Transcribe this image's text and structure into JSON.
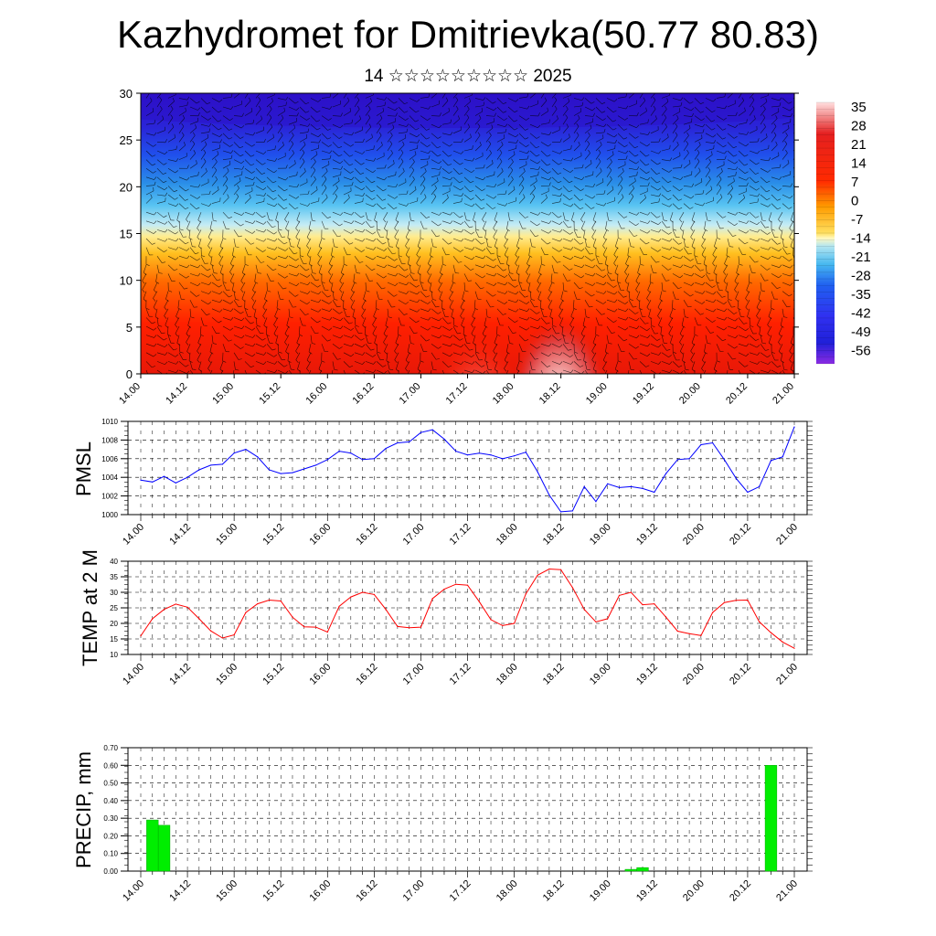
{
  "header": {
    "title": "Kazhydromet for Dmitrievka(50.77 80.83)",
    "subtitle": "14 ☆☆☆☆☆☆☆☆☆ 2025"
  },
  "x_tick_labels": [
    "14.00",
    "14.12",
    "15.00",
    "15.12",
    "16.00",
    "16.12",
    "17.00",
    "17.12",
    "18.00",
    "18.12",
    "19.00",
    "19.12",
    "20.00",
    "20.12",
    "21.00"
  ],
  "chart_data": [
    {
      "type": "heatmap",
      "ylim": [
        0,
        30
      ],
      "y_ticks": [
        0,
        5,
        10,
        15,
        20,
        25,
        30
      ],
      "colorbar_labels": [
        "35",
        "28",
        "21",
        "14",
        "7",
        "0",
        "-7",
        "-14",
        "-21",
        "-28",
        "-35",
        "-42",
        "-49",
        "-56"
      ],
      "colorbar_range": [
        -60,
        40
      ]
    },
    {
      "type": "line",
      "ylabel": "PMSL",
      "ylim": [
        1000,
        1010
      ],
      "y_ticks": [
        "1000",
        "1002",
        "1004",
        "1006",
        "1008",
        "1010"
      ],
      "color": "#0000ff",
      "x_hours": [
        0,
        3,
        6,
        9,
        12,
        15,
        18,
        21,
        24,
        27,
        30,
        33,
        36,
        39,
        42,
        45,
        48,
        51,
        54,
        57,
        60,
        63,
        66,
        69,
        72,
        75,
        78,
        81,
        84,
        87,
        90,
        93,
        96,
        99,
        102,
        105,
        108,
        111,
        114,
        117,
        120,
        123,
        126,
        129,
        132,
        135,
        138,
        141,
        144,
        147,
        150,
        153,
        156,
        159,
        162,
        165,
        168
      ],
      "values": [
        1003.7,
        1003.5,
        1004.1,
        1003.4,
        1004.0,
        1004.8,
        1005.3,
        1005.4,
        1006.6,
        1007.0,
        1006.2,
        1004.8,
        1004.4,
        1004.5,
        1004.9,
        1005.3,
        1005.9,
        1006.8,
        1006.6,
        1005.9,
        1006.0,
        1007.1,
        1007.7,
        1007.8,
        1008.8,
        1009.1,
        1008.1,
        1006.8,
        1006.4,
        1006.6,
        1006.4,
        1006.0,
        1006.3,
        1006.7,
        1004.6,
        1002.1,
        1000.3,
        1000.4,
        1003.0,
        1001.4,
        1003.3,
        1002.9,
        1003.0,
        1002.8,
        1002.4,
        1004.4,
        1005.9,
        1006.0,
        1007.5,
        1007.7,
        1005.9,
        1003.9,
        1002.4,
        1003.0,
        1005.8,
        1006.2,
        1009.4
      ]
    },
    {
      "type": "line",
      "ylabel": "TEMP at 2 M",
      "ylim": [
        10,
        40
      ],
      "y_ticks": [
        "10",
        "15",
        "20",
        "25",
        "30",
        "35",
        "40"
      ],
      "color": "#ff0000",
      "x_hours": [
        0,
        3,
        6,
        9,
        12,
        15,
        18,
        21,
        24,
        27,
        30,
        33,
        36,
        39,
        42,
        45,
        48,
        51,
        54,
        57,
        60,
        63,
        66,
        69,
        72,
        75,
        78,
        81,
        84,
        87,
        90,
        93,
        96,
        99,
        102,
        105,
        108,
        111,
        114,
        117,
        120,
        123,
        126,
        129,
        132,
        135,
        138,
        141,
        144,
        147,
        150,
        153,
        156,
        159,
        162,
        165,
        168
      ],
      "values": [
        16,
        21.5,
        24.5,
        26.2,
        25.2,
        21.5,
        17.6,
        15.3,
        16.3,
        23.5,
        26.3,
        27.5,
        27.2,
        22,
        18.9,
        18.8,
        17.2,
        25.5,
        28.5,
        30,
        29.3,
        24.5,
        19,
        18.6,
        18.8,
        28,
        31,
        32.6,
        32.3,
        27,
        21.2,
        19.3,
        20,
        29.5,
        35.5,
        37.5,
        37.3,
        31.5,
        24.5,
        20.5,
        21.5,
        29,
        30,
        26,
        26.3,
        22,
        17.5,
        16.7,
        16.1,
        23.5,
        26.7,
        27.4,
        27.5,
        20.5,
        17,
        14,
        12
      ]
    },
    {
      "type": "bar",
      "ylabel": "PRECIP, mm",
      "ylim": [
        0,
        0.7
      ],
      "y_ticks": [
        "0.00",
        "0.10",
        "0.20",
        "0.30",
        "0.40",
        "0.50",
        "0.60",
        "0.70"
      ],
      "color": "#00ee00",
      "bars": [
        {
          "x_hour": 3,
          "value": 0.29
        },
        {
          "x_hour": 6,
          "value": 0.26
        },
        {
          "x_hour": 126,
          "value": 0.01
        },
        {
          "x_hour": 129,
          "value": 0.02
        },
        {
          "x_hour": 162,
          "value": 0.6
        }
      ]
    }
  ]
}
